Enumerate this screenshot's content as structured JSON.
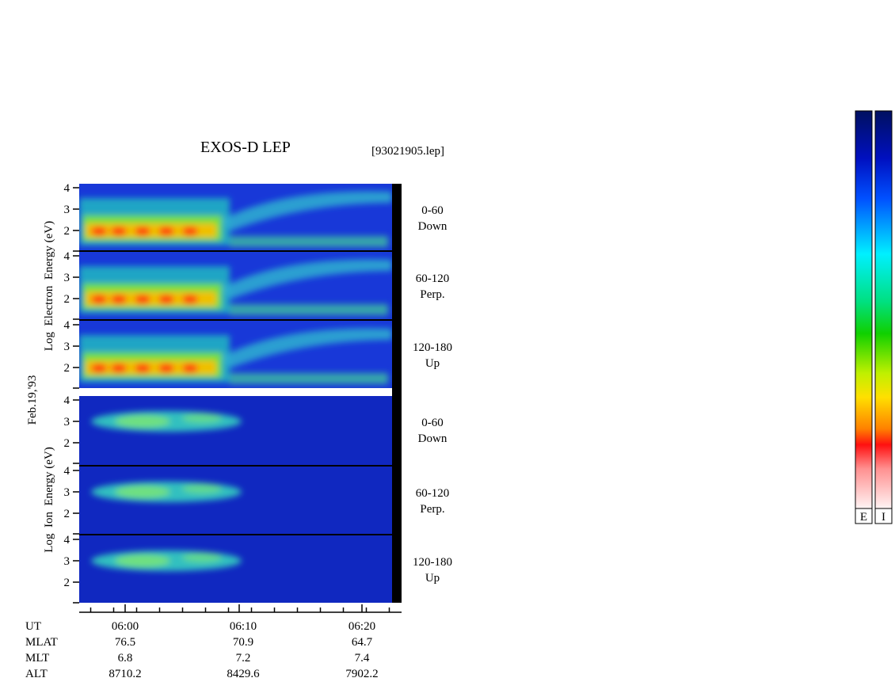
{
  "header": {
    "title": "EXOS-D LEP",
    "file": "[93021905.lep]",
    "date": "Feb.19,'93"
  },
  "electron": {
    "axis_label": "Log  Electron  Energy (eV)",
    "panels": [
      {
        "angle": "0-60",
        "direction": "Down"
      },
      {
        "angle": "60-120",
        "direction": "Perp."
      },
      {
        "angle": "120-180",
        "direction": "Up"
      }
    ]
  },
  "ion": {
    "axis_label": "Log  Ion  Energy (eV)",
    "panels": [
      {
        "angle": "0-60",
        "direction": "Down"
      },
      {
        "angle": "60-120",
        "direction": "Perp."
      },
      {
        "angle": "120-180",
        "direction": "Up"
      }
    ]
  },
  "yticks": [
    "4",
    "3",
    "2"
  ],
  "ephemeris": {
    "rows": [
      [
        "UT",
        "06:00",
        "06:10",
        "06:20"
      ],
      [
        "MLAT",
        "76.5",
        "70.9",
        "64.7"
      ],
      [
        "MLT",
        "6.8",
        "7.2",
        "7.4"
      ],
      [
        "ALT",
        "8710.2",
        "8429.6",
        "7902.2"
      ]
    ]
  },
  "colorbars": [
    "E",
    "I"
  ]
}
